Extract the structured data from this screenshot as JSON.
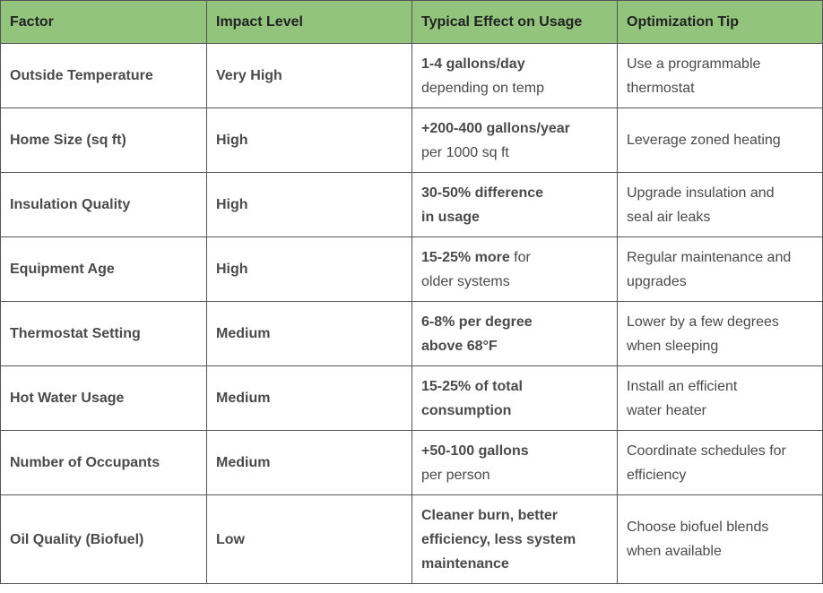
{
  "table": {
    "headers": [
      "Factor",
      "Impact Level",
      "Typical Effect on Usage",
      "Optimization Tip"
    ],
    "rows": [
      {
        "factor": "Outside Temperature",
        "impact": "Very High",
        "effect": [
          [
            {
              "text": "1-4 gallons/day",
              "bold": true
            }
          ],
          [
            {
              "text": "depending on temp",
              "bold": false
            }
          ]
        ],
        "tip": [
          "Use a programmable",
          "thermostat"
        ]
      },
      {
        "factor": "Home Size (sq ft)",
        "impact": "High",
        "effect": [
          [
            {
              "text": "+200-400 gallons/year",
              "bold": true
            }
          ],
          [
            {
              "text": "per 1000 sq ft",
              "bold": false
            }
          ]
        ],
        "tip": [
          "Leverage zoned heating"
        ]
      },
      {
        "factor": "Insulation Quality",
        "impact": "High",
        "effect": [
          [
            {
              "text": "30-50% difference",
              "bold": true
            }
          ],
          [
            {
              "text": "in usage",
              "bold": true
            }
          ]
        ],
        "tip": [
          "Upgrade insulation and",
          "seal air leaks"
        ]
      },
      {
        "factor": "Equipment Age",
        "impact": "High",
        "effect": [
          [
            {
              "text": "15-25% more",
              "bold": true
            },
            {
              "text": "for",
              "bold": false
            }
          ],
          [
            {
              "text": "older systems",
              "bold": false
            }
          ]
        ],
        "tip": [
          "Regular maintenance and",
          "upgrades"
        ]
      },
      {
        "factor": "Thermostat Setting",
        "impact": "Medium",
        "effect": [
          [
            {
              "text": "6-8% per degree",
              "bold": true
            }
          ],
          [
            {
              "text": "above 68°F",
              "bold": true
            }
          ]
        ],
        "tip": [
          "Lower by a few degrees",
          "when sleeping"
        ]
      },
      {
        "factor": "Hot Water Usage",
        "impact": "Medium",
        "effect": [
          [
            {
              "text": "15-25% of total",
              "bold": true
            }
          ],
          [
            {
              "text": "consumption",
              "bold": true
            }
          ]
        ],
        "tip": [
          "Install an efficient",
          "water heater"
        ]
      },
      {
        "factor": "Number of Occupants",
        "impact": "Medium",
        "effect": [
          [
            {
              "text": "+50-100 gallons",
              "bold": true
            }
          ],
          [
            {
              "text": "per person",
              "bold": false
            }
          ]
        ],
        "tip": [
          "Coordinate schedules for",
          "efficiency"
        ]
      },
      {
        "factor": "Oil Quality (Biofuel)",
        "impact": "Low",
        "effect": [
          [
            {
              "text": "Cleaner burn, better",
              "bold": true
            }
          ],
          [
            {
              "text": "efficiency, less system",
              "bold": true
            }
          ],
          [
            {
              "text": "maintenance",
              "bold": true
            }
          ]
        ],
        "tip": [
          "Choose biofuel blends",
          "when available"
        ]
      }
    ]
  }
}
